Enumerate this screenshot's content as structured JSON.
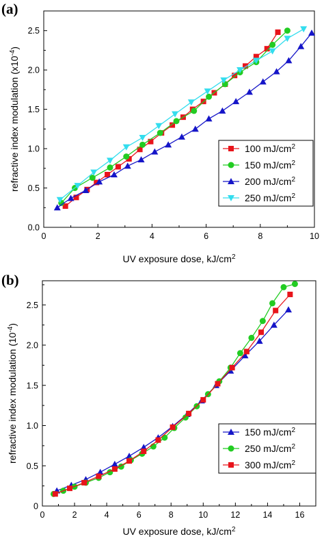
{
  "panels": [
    {
      "label": "(a)"
    },
    {
      "label": "(b)"
    }
  ],
  "chart_data": [
    {
      "type": "line",
      "xlabel": "UV exposure dose, kJ/cm",
      "xlabel_sup": "2",
      "ylabel": "refractive index modulation (x10",
      "ylabel_sup": "-4",
      "ylabel_end": ")",
      "xlim": [
        0,
        10
      ],
      "ylim": [
        0,
        2.75
      ],
      "xticks": [
        0,
        2,
        4,
        6,
        8,
        10
      ],
      "yticks": [
        0.0,
        0.5,
        1.0,
        1.5,
        2.0,
        2.5
      ],
      "ytick_labels": [
        "0.0",
        "0.5",
        "1.0",
        "1.5",
        "2.0",
        "2.5"
      ],
      "legend_position": "right",
      "series": [
        {
          "name": "100 mJ/cm",
          "name_sup": "2",
          "color": "#e8141b",
          "marker": "square",
          "x": [
            0.8,
            1.2,
            1.6,
            1.95,
            2.35,
            2.75,
            3.15,
            3.55,
            3.95,
            4.35,
            4.75,
            5.15,
            5.5,
            5.9,
            6.3,
            6.7,
            7.05,
            7.45,
            7.85,
            8.25,
            8.65
          ],
          "y": [
            0.27,
            0.38,
            0.48,
            0.57,
            0.67,
            0.77,
            0.87,
            0.99,
            1.09,
            1.2,
            1.3,
            1.4,
            1.5,
            1.6,
            1.71,
            1.82,
            1.93,
            2.05,
            2.17,
            2.27,
            2.48
          ]
        },
        {
          "name": "150 mJ/cm",
          "name_sup": "2",
          "color": "#22cc22",
          "marker": "circle",
          "x": [
            0.65,
            1.15,
            1.8,
            2.45,
            3.05,
            3.65,
            4.3,
            4.9,
            5.55,
            6.1,
            6.7,
            7.25,
            7.85,
            8.45,
            9.0
          ],
          "y": [
            0.31,
            0.5,
            0.63,
            0.76,
            0.9,
            1.05,
            1.2,
            1.35,
            1.48,
            1.66,
            1.82,
            1.97,
            2.1,
            2.32,
            2.5
          ]
        },
        {
          "name": "200 mJ/cm",
          "name_sup": "2",
          "color": "#1515c8",
          "marker": "triangle-up",
          "x": [
            0.5,
            1.0,
            1.55,
            2.05,
            2.6,
            3.1,
            3.6,
            4.1,
            4.6,
            5.1,
            5.6,
            6.1,
            6.6,
            7.1,
            7.6,
            8.1,
            8.6,
            9.05,
            9.5,
            9.9
          ],
          "y": [
            0.25,
            0.37,
            0.47,
            0.58,
            0.67,
            0.78,
            0.86,
            0.96,
            1.05,
            1.15,
            1.25,
            1.38,
            1.48,
            1.6,
            1.72,
            1.85,
            1.98,
            2.12,
            2.3,
            2.47
          ]
        },
        {
          "name": "250 mJ/cm",
          "name_sup": "2",
          "color": "#33ddee",
          "marker": "triangle-down",
          "x": [
            0.6,
            1.25,
            1.85,
            2.45,
            3.05,
            3.65,
            4.25,
            4.85,
            5.45,
            6.05,
            6.65,
            7.25,
            7.85,
            8.45,
            9.0,
            9.6
          ],
          "y": [
            0.35,
            0.53,
            0.7,
            0.85,
            1.02,
            1.14,
            1.29,
            1.44,
            1.59,
            1.73,
            1.87,
            2.0,
            2.12,
            2.24,
            2.4,
            2.52
          ]
        }
      ]
    },
    {
      "type": "line",
      "xlabel": "UV exposure dose, kJ/cm",
      "xlabel_sup": "2",
      "ylabel": "refractive index modulation (10",
      "ylabel_sup": "-4",
      "ylabel_end": ")",
      "xlim": [
        0,
        17
      ],
      "ylim": [
        0,
        2.8
      ],
      "xticks": [
        0,
        2,
        4,
        6,
        8,
        10,
        12,
        14,
        16
      ],
      "yticks": [
        0.0,
        0.5,
        1.0,
        1.5,
        2.0,
        2.5
      ],
      "ytick_labels": [
        "0",
        "0.5",
        "1.0",
        "1.5",
        "2.0",
        "2.5"
      ],
      "legend_position": "right",
      "series": [
        {
          "name": "150 mJ/cm",
          "name_sup": "2",
          "color": "#1515c8",
          "marker": "triangle-up",
          "x": [
            0.9,
            1.8,
            2.7,
            3.6,
            4.5,
            5.4,
            6.3,
            7.2,
            8.1,
            9.0,
            9.9,
            10.8,
            11.7,
            12.6,
            13.5,
            14.4,
            15.3
          ],
          "y": [
            0.19,
            0.26,
            0.33,
            0.42,
            0.52,
            0.62,
            0.73,
            0.85,
            0.99,
            1.14,
            1.31,
            1.5,
            1.68,
            1.87,
            2.05,
            2.25,
            2.44
          ]
        },
        {
          "name": "250 mJ/cm",
          "name_sup": "2",
          "color": "#22cc22",
          "marker": "circle",
          "x": [
            0.7,
            1.3,
            2.0,
            2.7,
            3.5,
            4.2,
            4.9,
            5.5,
            6.2,
            6.9,
            7.6,
            8.2,
            8.9,
            9.6,
            10.3,
            11.0,
            11.7,
            12.3,
            13.0,
            13.7,
            14.3,
            15.0,
            15.7
          ],
          "y": [
            0.15,
            0.19,
            0.24,
            0.29,
            0.35,
            0.42,
            0.49,
            0.57,
            0.65,
            0.74,
            0.85,
            0.97,
            1.1,
            1.24,
            1.39,
            1.55,
            1.72,
            1.9,
            2.09,
            2.3,
            2.52,
            2.72,
            2.76
          ]
        },
        {
          "name": "300 mJ/cm",
          "name_sup": "2",
          "color": "#e8141b",
          "marker": "square",
          "x": [
            0.8,
            1.7,
            2.6,
            3.5,
            4.5,
            5.4,
            6.3,
            7.2,
            8.1,
            9.1,
            10.0,
            10.9,
            11.8,
            12.7,
            13.6,
            14.5,
            15.4
          ],
          "y": [
            0.15,
            0.22,
            0.29,
            0.37,
            0.46,
            0.56,
            0.68,
            0.82,
            0.98,
            1.15,
            1.32,
            1.52,
            1.72,
            1.92,
            2.16,
            2.43,
            2.63
          ]
        }
      ]
    }
  ]
}
